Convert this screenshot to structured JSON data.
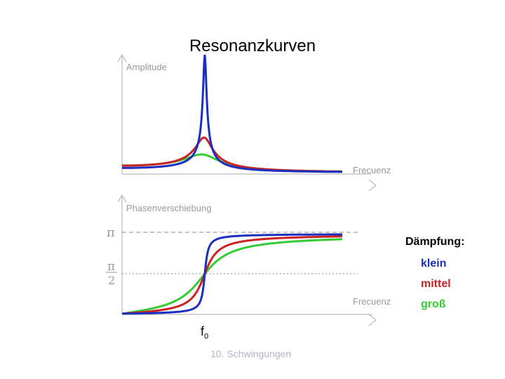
{
  "title": "Resonanzkurven",
  "footer": "10. Schwingungen",
  "colors": {
    "klein": "#1a2fbf",
    "mittel": "#cc2222",
    "gross": "#33cc33",
    "axis": "#aaaaaa",
    "axis_text": "#999999"
  },
  "legend": {
    "heading": "Dämpfung:",
    "items": [
      "klein",
      "mittel",
      "groß"
    ]
  },
  "marker": {
    "label": "f",
    "subscript": "0"
  },
  "chart_data": [
    {
      "type": "line",
      "ylabel": "Amplitude",
      "xlabel": "Frecuenz",
      "series": [
        {
          "name": "klein",
          "values": [
            0.0,
            0.01,
            0.03,
            0.1,
            0.3,
            1.0,
            0.3,
            0.1,
            0.03,
            0.01,
            0.0
          ]
        },
        {
          "name": "mittel",
          "values": [
            0.0,
            0.01,
            0.03,
            0.08,
            0.18,
            0.32,
            0.16,
            0.08,
            0.03,
            0.01,
            0.0
          ]
        },
        {
          "name": "groß",
          "values": [
            0.0,
            0.01,
            0.03,
            0.07,
            0.12,
            0.17,
            0.11,
            0.06,
            0.03,
            0.01,
            0.0
          ]
        }
      ]
    },
    {
      "type": "line",
      "ylabel": "Phasenverschiebung",
      "xlabel": "Frecuenz",
      "y_ticks": [
        "π",
        "π/2"
      ],
      "series": [
        {
          "name": "klein"
        },
        {
          "name": "mittel"
        },
        {
          "name": "groß"
        }
      ]
    }
  ]
}
